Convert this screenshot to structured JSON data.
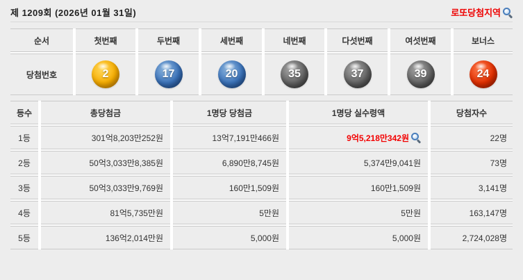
{
  "header": {
    "title": "제 1209회 (2026년 01월 31일)",
    "region_link_label": "로또당첨지역"
  },
  "icons": {
    "magnifier": "circle-with-handle magnifier glyph"
  },
  "colors": {
    "accent_red": "#ee0000",
    "page_bg": "#ededed",
    "ball_yellow": "#f7ad00",
    "ball_blue": "#3a72ba",
    "ball_gray": "#626262",
    "ball_red": "#e22f00"
  },
  "numbers_table": {
    "headers": [
      "순서",
      "첫번째",
      "두번째",
      "세번째",
      "네번째",
      "다섯번째",
      "여섯번째",
      "보너스"
    ],
    "row_label": "당첨번호",
    "balls": [
      {
        "number": "2",
        "color": "yellow"
      },
      {
        "number": "17",
        "color": "blue"
      },
      {
        "number": "20",
        "color": "blue"
      },
      {
        "number": "35",
        "color": "gray"
      },
      {
        "number": "37",
        "color": "gray"
      },
      {
        "number": "39",
        "color": "gray"
      },
      {
        "number": "24",
        "color": "red"
      }
    ]
  },
  "prize_table": {
    "headers": [
      "등수",
      "총당첨금",
      "1명당 당첨금",
      "1명당 실수령액",
      "당첨자수"
    ],
    "rows": [
      {
        "rank": "1등",
        "total": "301억8,203만252원",
        "per_winner": "13억7,191만466원",
        "net": "9억5,218만342원",
        "winners": "22명"
      },
      {
        "rank": "2등",
        "total": "50억3,033만8,385원",
        "per_winner": "6,890만8,745원",
        "net": "5,374만9,041원",
        "winners": "73명"
      },
      {
        "rank": "3등",
        "total": "50억3,033만9,769원",
        "per_winner": "160만1,509원",
        "net": "160만1,509원",
        "winners": "3,141명"
      },
      {
        "rank": "4등",
        "total": "81억5,735만원",
        "per_winner": "5만원",
        "net": "5만원",
        "winners": "163,147명"
      },
      {
        "rank": "5등",
        "total": "136억2,014만원",
        "per_winner": "5,000원",
        "net": "5,000원",
        "winners": "2,724,028명"
      }
    ]
  }
}
